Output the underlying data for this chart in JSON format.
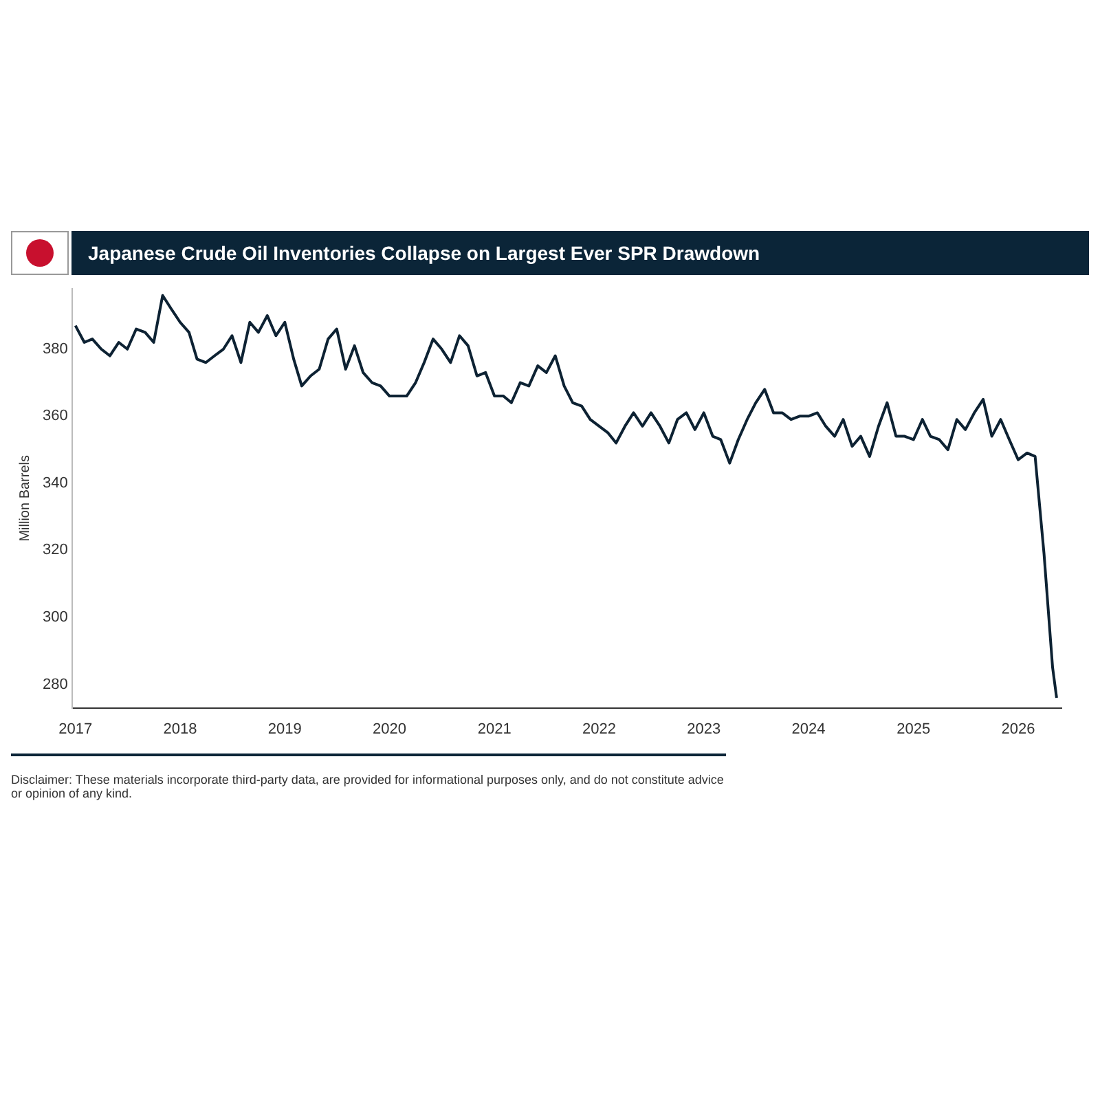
{
  "chart_data": {
    "type": "line",
    "title": "Japanese Crude Oil Inventories Collapse on Largest Ever SPR Drawdown",
    "ylabel": "Million Barrels",
    "x": [
      "2017-01",
      "2017-02",
      "2017-03",
      "2017-04",
      "2017-05",
      "2017-06",
      "2017-07",
      "2017-08",
      "2017-09",
      "2017-10",
      "2017-11",
      "2017-12",
      "2018-01",
      "2018-02",
      "2018-03",
      "2018-04",
      "2018-05",
      "2018-06",
      "2018-07",
      "2018-08",
      "2018-09",
      "2018-10",
      "2018-11",
      "2018-12",
      "2019-01",
      "2019-02",
      "2019-03",
      "2019-04",
      "2019-05",
      "2019-06",
      "2019-07",
      "2019-08",
      "2019-09",
      "2019-10",
      "2019-11",
      "2019-12",
      "2020-01",
      "2020-02",
      "2020-03",
      "2020-04",
      "2020-05",
      "2020-06",
      "2020-07",
      "2020-08",
      "2020-09",
      "2020-10",
      "2020-11",
      "2020-12",
      "2021-01",
      "2021-02",
      "2021-03",
      "2021-04",
      "2021-05",
      "2021-06",
      "2021-07",
      "2021-08",
      "2021-09",
      "2021-10",
      "2021-11",
      "2021-12",
      "2022-01",
      "2022-02",
      "2022-03",
      "2022-04",
      "2022-05",
      "2022-06",
      "2022-07",
      "2022-08",
      "2022-09",
      "2022-10",
      "2022-11",
      "2022-12",
      "2023-01",
      "2023-02",
      "2023-03",
      "2023-04",
      "2023-05",
      "2023-06",
      "2023-07",
      "2023-08",
      "2023-09",
      "2023-10",
      "2023-11",
      "2023-12",
      "2024-01",
      "2024-02",
      "2024-03",
      "2024-04",
      "2024-05",
      "2024-06",
      "2024-07",
      "2024-08",
      "2024-09",
      "2024-10",
      "2024-11",
      "2024-12",
      "2025-01",
      "2025-02",
      "2025-03",
      "2025-04",
      "2025-05",
      "2025-06",
      "2025-07",
      "2025-08",
      "2025-09",
      "2025-10",
      "2025-11",
      "2025-12",
      "2026-01",
      "2026-02",
      "2026-03",
      "2026-04",
      "2026-05",
      "2026-05-15"
    ],
    "series": [
      {
        "color": "#0d2233",
        "values": [
          387,
          382,
          383,
          380,
          378,
          382,
          380,
          386,
          385,
          382,
          396,
          392,
          388,
          385,
          377,
          376,
          378,
          380,
          384,
          376,
          388,
          385,
          390,
          384,
          388,
          377,
          369,
          372,
          374,
          383,
          386,
          374,
          381,
          373,
          370,
          369,
          366,
          366,
          366,
          370,
          376,
          383,
          380,
          376,
          384,
          381,
          372,
          373,
          366,
          366,
          364,
          370,
          369,
          375,
          373,
          378,
          369,
          364,
          363,
          359,
          357,
          355,
          352,
          357,
          361,
          357,
          361,
          357,
          352,
          359,
          361,
          356,
          361,
          354,
          353,
          346,
          353,
          359,
          364,
          368,
          361,
          361,
          359,
          360,
          360,
          361,
          357,
          354,
          359,
          351,
          354,
          348,
          357,
          364,
          354,
          354,
          353,
          359,
          354,
          353,
          350,
          359,
          356,
          361,
          365,
          354,
          359,
          353,
          347,
          349,
          348,
          319,
          285,
          276
        ]
      }
    ],
    "xlim": [
      "2016-12-20",
      "2026-06-01"
    ],
    "xticks": [
      "2017",
      "2018",
      "2019",
      "2020",
      "2021",
      "2022",
      "2023",
      "2024",
      "2025",
      "2026"
    ],
    "ylim": [
      273,
      398
    ],
    "yticks": [
      280,
      300,
      320,
      340,
      360,
      380
    ],
    "grid": false,
    "legend": false,
    "marker": "none",
    "line_style": "solid",
    "annotations": [
      "Disclaimer: These materials incorporate third-party data, are provided for informational purposes only, and do not constitute advice or opinion of any kind."
    ]
  }
}
